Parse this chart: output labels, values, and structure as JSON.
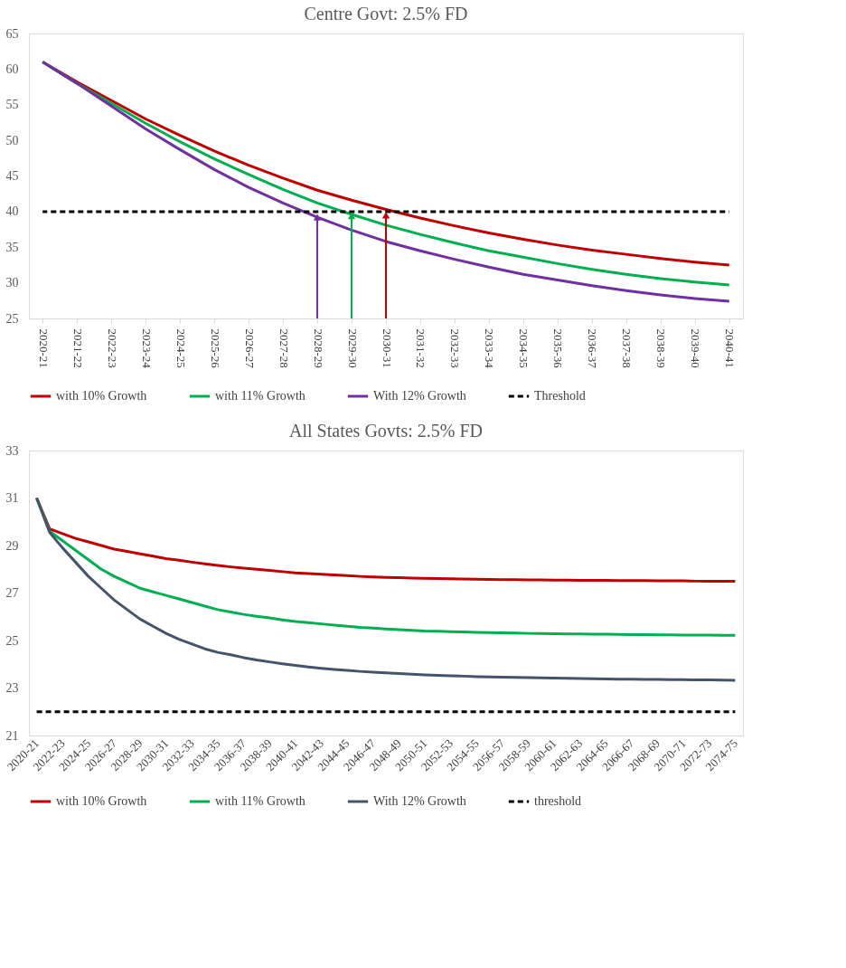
{
  "chart_data": [
    {
      "type": "line",
      "title": "Centre Govt: 2.5% FD",
      "categories": [
        "2020-21",
        "2021-22",
        "2022-23",
        "2023-24",
        "2024-25",
        "2025-26",
        "2026-27",
        "2027-28",
        "2028-29",
        "2029-30",
        "2030-31",
        "2031-32",
        "2032-33",
        "2033-34",
        "2034-35",
        "2035-36",
        "2036-37",
        "2037-38",
        "2038-39",
        "2039-40",
        "2040-41"
      ],
      "series": [
        {
          "name": "with 10% Growth",
          "color": "#c00000",
          "values": [
            61,
            58.2,
            55.6,
            53.0,
            50.7,
            48.5,
            46.5,
            44.7,
            43.0,
            41.6,
            40.3,
            39.1,
            38.0,
            37.0,
            36.1,
            35.3,
            34.6,
            34.0,
            33.4,
            32.9,
            32.5
          ]
        },
        {
          "name": "with 11% Growth",
          "color": "#00b050",
          "values": [
            61,
            58.0,
            55.2,
            52.4,
            49.8,
            47.4,
            45.2,
            43.1,
            41.2,
            39.6,
            38.1,
            36.8,
            35.6,
            34.5,
            33.6,
            32.7,
            31.9,
            31.2,
            30.6,
            30.1,
            29.7
          ]
        },
        {
          "name": "With 12% Growth",
          "color": "#7030a0",
          "values": [
            61,
            58.0,
            54.8,
            51.6,
            48.7,
            45.9,
            43.4,
            41.2,
            39.2,
            37.4,
            35.8,
            34.5,
            33.3,
            32.2,
            31.2,
            30.4,
            29.6,
            28.9,
            28.3,
            27.8,
            27.4
          ]
        },
        {
          "name": "Threshold",
          "color": "#000000",
          "line_style": "dashed",
          "values": [
            40,
            40,
            40,
            40,
            40,
            40,
            40,
            40,
            40,
            40,
            40,
            40,
            40,
            40,
            40,
            40,
            40,
            40,
            40,
            40,
            40
          ]
        },
        {
          "color": "#7030a0",
          "marker": "triangle",
          "x": [
            "2028-29",
            "2028-29"
          ],
          "values": [
            25,
            39.2
          ]
        },
        {
          "color": "#00b050",
          "marker": "triangle",
          "x": [
            "2029-30",
            "2029-30"
          ],
          "values": [
            25,
            39.4
          ]
        },
        {
          "color": "#c00000",
          "marker": "triangle",
          "x": [
            "2030-31",
            "2030-31"
          ],
          "values": [
            25,
            39.5
          ]
        }
      ],
      "ylim": [
        25,
        65
      ],
      "yticks": [
        25,
        30,
        35,
        40,
        45,
        50,
        55,
        60,
        65
      ],
      "grid": false,
      "legend": "bottom",
      "line_style": "solid",
      "marker": "none"
    },
    {
      "type": "line",
      "title": "All States Govts: 2.5% FD",
      "categories": [
        "2020-21",
        null,
        "2022-23",
        null,
        "2024-25",
        null,
        "2026-27",
        null,
        "2028-29",
        null,
        "2030-31",
        null,
        "2032-33",
        null,
        "2034-35",
        null,
        "2036-37",
        null,
        "2038-39",
        null,
        "2040-41",
        null,
        "2042-43",
        null,
        "2044-45",
        null,
        "2046-47",
        null,
        "2048-49",
        null,
        "2050-51",
        null,
        "2052-53",
        null,
        "2054-55",
        null,
        "2056-57",
        null,
        "2058-59",
        null,
        "2060-61",
        null,
        "2062-63",
        null,
        "2064-65",
        null,
        "2066-67",
        null,
        "2068-69",
        null,
        "2070-71",
        null,
        "2072-73",
        null,
        "2074-75"
      ],
      "series": [
        {
          "name": "with 10% Growth",
          "color": "#c00000",
          "values": [
            31.0,
            29.7,
            29.5,
            29.3,
            29.15,
            29.0,
            28.85,
            28.75,
            28.65,
            28.55,
            28.45,
            28.38,
            28.3,
            28.23,
            28.16,
            28.1,
            28.05,
            28.0,
            27.95,
            27.9,
            27.85,
            27.82,
            27.79,
            27.76,
            27.73,
            27.7,
            27.68,
            27.66,
            27.65,
            27.63,
            27.62,
            27.61,
            27.6,
            27.59,
            27.58,
            27.57,
            27.56,
            27.56,
            27.55,
            27.55,
            27.54,
            27.54,
            27.53,
            27.53,
            27.53,
            27.52,
            27.52,
            27.52,
            27.51,
            27.51,
            27.51,
            27.5,
            27.5,
            27.5,
            27.5
          ]
        },
        {
          "name": "with 11% Growth",
          "color": "#00b050",
          "values": [
            31.0,
            29.6,
            29.2,
            28.8,
            28.4,
            28.0,
            27.7,
            27.45,
            27.2,
            27.05,
            26.9,
            26.75,
            26.6,
            26.45,
            26.3,
            26.2,
            26.1,
            26.02,
            25.95,
            25.87,
            25.8,
            25.75,
            25.7,
            25.65,
            25.6,
            25.55,
            25.52,
            25.49,
            25.46,
            25.43,
            25.4,
            25.39,
            25.37,
            25.36,
            25.34,
            25.33,
            25.32,
            25.31,
            25.3,
            25.3,
            25.29,
            25.28,
            25.28,
            25.27,
            25.27,
            25.26,
            25.25,
            25.25,
            25.24,
            25.24,
            25.23,
            25.23,
            25.23,
            25.22,
            25.22
          ]
        },
        {
          "name": "With 12% Growth",
          "color": "#44546a",
          "values": [
            31.0,
            29.55,
            28.9,
            28.3,
            27.7,
            27.2,
            26.7,
            26.3,
            25.9,
            25.6,
            25.3,
            25.05,
            24.85,
            24.65,
            24.5,
            24.4,
            24.28,
            24.18,
            24.1,
            24.02,
            23.95,
            23.89,
            23.83,
            23.78,
            23.74,
            23.7,
            23.67,
            23.64,
            23.61,
            23.58,
            23.55,
            23.53,
            23.51,
            23.5,
            23.48,
            23.47,
            23.46,
            23.45,
            23.44,
            23.43,
            23.42,
            23.41,
            23.4,
            23.39,
            23.38,
            23.37,
            23.37,
            23.36,
            23.36,
            23.35,
            23.35,
            23.34,
            23.34,
            23.33,
            23.32
          ]
        },
        {
          "name": "threshold",
          "color": "#000000",
          "line_style": "dashed",
          "values": [
            22,
            22,
            22,
            22,
            22,
            22,
            22,
            22,
            22,
            22,
            22,
            22,
            22,
            22,
            22,
            22,
            22,
            22,
            22,
            22,
            22,
            22,
            22,
            22,
            22,
            22,
            22,
            22,
            22,
            22,
            22,
            22,
            22,
            22,
            22,
            22,
            22,
            22,
            22,
            22,
            22,
            22,
            22,
            22,
            22,
            22,
            22,
            22,
            22,
            22,
            22,
            22,
            22,
            22,
            22
          ]
        }
      ],
      "ylim": [
        21,
        33
      ],
      "yticks": [
        21,
        23,
        25,
        27,
        29,
        31,
        33
      ],
      "grid": false,
      "legend": "bottom",
      "line_style": "solid",
      "marker": "none"
    }
  ]
}
